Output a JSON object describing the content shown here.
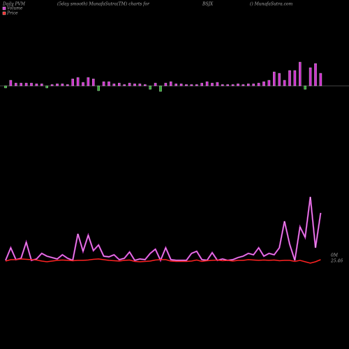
{
  "chart_data": {
    "type": "pvm",
    "title_left": "Daily PVM",
    "title_mid": "(5day smooth) MunafaSutra(TM) charts for",
    "symbol": "BSJX",
    "site": "() MunafaSutra.com",
    "series": [
      {
        "name": "Volume",
        "color": "#cc33cc",
        "bars": [
          -3,
          8,
          4,
          4,
          4,
          4,
          3,
          3,
          -3,
          2,
          3,
          3,
          2,
          10,
          12,
          5,
          12,
          10,
          -7,
          6,
          6,
          3,
          4,
          2,
          4,
          3,
          3,
          2,
          -5,
          4,
          -8,
          4,
          6,
          3,
          3,
          2,
          2,
          2,
          4,
          6,
          4,
          5,
          2,
          2,
          2,
          3,
          2,
          3,
          3,
          4,
          6,
          8,
          20,
          18,
          8,
          22,
          22,
          34,
          -5,
          26,
          32,
          18
        ],
        "values": [
          2,
          20,
          3,
          5,
          28,
          2,
          4,
          12,
          8,
          6,
          4,
          10,
          5,
          2,
          40,
          15,
          38,
          16,
          24,
          8,
          7,
          10,
          3,
          5,
          14,
          2,
          4,
          3,
          12,
          18,
          2,
          20,
          3,
          2,
          2,
          2,
          12,
          15,
          3,
          2,
          13,
          2,
          4,
          2,
          3,
          6,
          8,
          12,
          10,
          20,
          8,
          12,
          10,
          20,
          58,
          25,
          2,
          50,
          35,
          93,
          20,
          70
        ]
      },
      {
        "name": "Price",
        "color": "#ff2222",
        "axis": "y2",
        "values": [
          25.42,
          25.46,
          25.46,
          25.48,
          25.47,
          25.46,
          25.45,
          25.42,
          25.4,
          25.42,
          25.44,
          25.45,
          25.44,
          25.43,
          25.44,
          25.44,
          25.45,
          25.47,
          25.48,
          25.46,
          25.44,
          25.43,
          25.42,
          25.44,
          25.45,
          25.41,
          25.4,
          25.41,
          25.42,
          25.45,
          25.46,
          25.46,
          25.42,
          25.41,
          25.41,
          25.41,
          25.42,
          25.45,
          25.41,
          25.43,
          25.44,
          25.45,
          25.43,
          25.44,
          25.42,
          25.44,
          25.44,
          25.46,
          25.45,
          25.44,
          25.45,
          25.44,
          25.45,
          25.43,
          25.44,
          25.44,
          25.41,
          25.44,
          25.4,
          25.36,
          25.4,
          25.46
        ]
      }
    ],
    "ylim": [
      0,
      100
    ],
    "y2lim": [
      25.0,
      26.0
    ],
    "volume_label": "0M",
    "price_label": "25.46"
  }
}
